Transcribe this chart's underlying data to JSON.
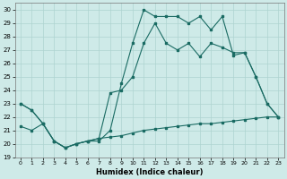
{
  "xlabel": "Humidex (Indice chaleur)",
  "background_color": "#ceeae8",
  "grid_color": "#aed4d0",
  "line_color": "#1a6b63",
  "xlim": [
    -0.5,
    23.5
  ],
  "ylim": [
    19,
    30.5
  ],
  "xticks": [
    0,
    1,
    2,
    3,
    4,
    5,
    6,
    7,
    8,
    9,
    10,
    11,
    12,
    13,
    14,
    15,
    16,
    17,
    18,
    19,
    20,
    21,
    22,
    23
  ],
  "yticks": [
    19,
    20,
    21,
    22,
    23,
    24,
    25,
    26,
    27,
    28,
    29,
    30
  ],
  "series1_x": [
    0,
    1,
    2,
    3,
    4,
    5,
    6,
    7,
    8,
    9,
    10,
    11,
    12,
    13,
    14,
    15,
    16,
    17,
    18,
    19,
    20,
    21,
    22,
    23
  ],
  "series1_y": [
    23.0,
    22.5,
    21.5,
    20.2,
    19.7,
    20.0,
    20.2,
    20.2,
    21.0,
    24.5,
    27.5,
    30.0,
    29.5,
    29.5,
    29.5,
    29.0,
    29.5,
    28.5,
    29.5,
    26.6,
    26.8,
    25.0,
    23.0,
    22.0
  ],
  "series2_x": [
    0,
    1,
    2,
    3,
    4,
    5,
    6,
    7,
    8,
    9,
    10,
    11,
    12,
    13,
    14,
    15,
    16,
    17,
    18,
    19,
    20,
    21,
    22,
    23
  ],
  "series2_y": [
    23.0,
    22.5,
    21.5,
    20.2,
    19.7,
    20.0,
    20.2,
    20.4,
    23.8,
    24.0,
    25.0,
    27.5,
    29.0,
    27.5,
    27.0,
    27.5,
    26.5,
    27.5,
    27.2,
    26.8,
    26.8,
    25.0,
    23.0,
    22.0
  ],
  "series3_x": [
    0,
    1,
    2,
    3,
    4,
    5,
    6,
    7,
    8,
    9,
    10,
    11,
    12,
    13,
    14,
    15,
    16,
    17,
    18,
    19,
    20,
    21,
    22,
    23
  ],
  "series3_y": [
    21.3,
    21.0,
    21.5,
    20.2,
    19.7,
    20.0,
    20.2,
    20.4,
    20.5,
    20.6,
    20.8,
    21.0,
    21.1,
    21.2,
    21.3,
    21.4,
    21.5,
    21.5,
    21.6,
    21.7,
    21.8,
    21.9,
    22.0,
    22.0
  ]
}
